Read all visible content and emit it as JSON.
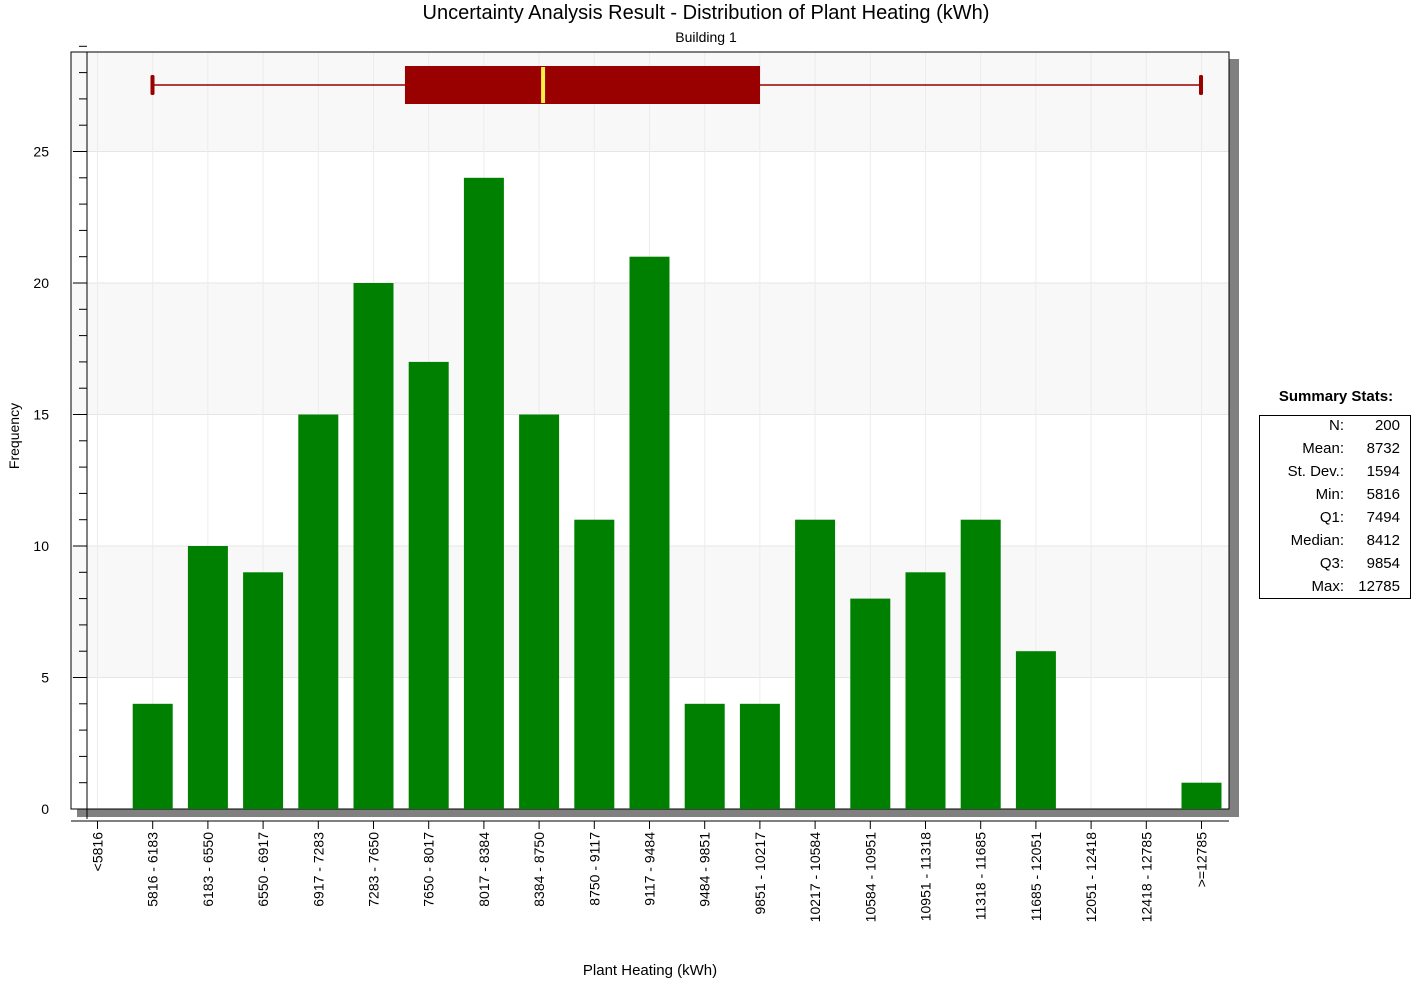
{
  "chart_data": {
    "type": "bar",
    "title": "Uncertainty Analysis Result - Distribution of Plant Heating (kWh)",
    "subtitle": "Building 1",
    "xlabel": "Plant Heating (kWh)",
    "ylabel": "Frequency",
    "ylim": [
      0,
      29
    ],
    "yticks": [
      0,
      5,
      10,
      15,
      20,
      25
    ],
    "grid": true,
    "categories": [
      "<5816",
      "5816 - 6183",
      "6183 - 6550",
      "6550 - 6917",
      "6917 - 7283",
      "7283 - 7650",
      "7650 - 8017",
      "8017 - 8384",
      "8384 - 8750",
      "8750 - 9117",
      "9117 - 9484",
      "9484 - 9851",
      "9851 - 10217",
      "10217 - 10584",
      "10584 - 10951",
      "10951 - 11318",
      "11318 - 11685",
      "11685 - 12051",
      "12051 - 12418",
      "12418 - 12785",
      ">=12785"
    ],
    "values": [
      0,
      4,
      10,
      9,
      15,
      20,
      17,
      24,
      15,
      11,
      21,
      4,
      4,
      11,
      8,
      9,
      11,
      6,
      0,
      0,
      1
    ],
    "bar_color": "#008000",
    "boxplot": {
      "min": 5816,
      "q1": 7494,
      "median": 8412,
      "q3": 9854,
      "max": 12785,
      "box_color": "#990000",
      "median_color": "#ffee44"
    }
  },
  "summary_stats": {
    "title": "Summary  Stats:",
    "rows": [
      {
        "label": "N:",
        "value": "200"
      },
      {
        "label": "Mean:",
        "value": "8732"
      },
      {
        "label": "St. Dev.:",
        "value": "1594"
      },
      {
        "label": "Min:",
        "value": "5816"
      },
      {
        "label": "Q1:",
        "value": "7494"
      },
      {
        "label": "Median:",
        "value": "8412"
      },
      {
        "label": "Q3:",
        "value": "9854"
      },
      {
        "label": "Max:",
        "value": "12785"
      }
    ]
  }
}
